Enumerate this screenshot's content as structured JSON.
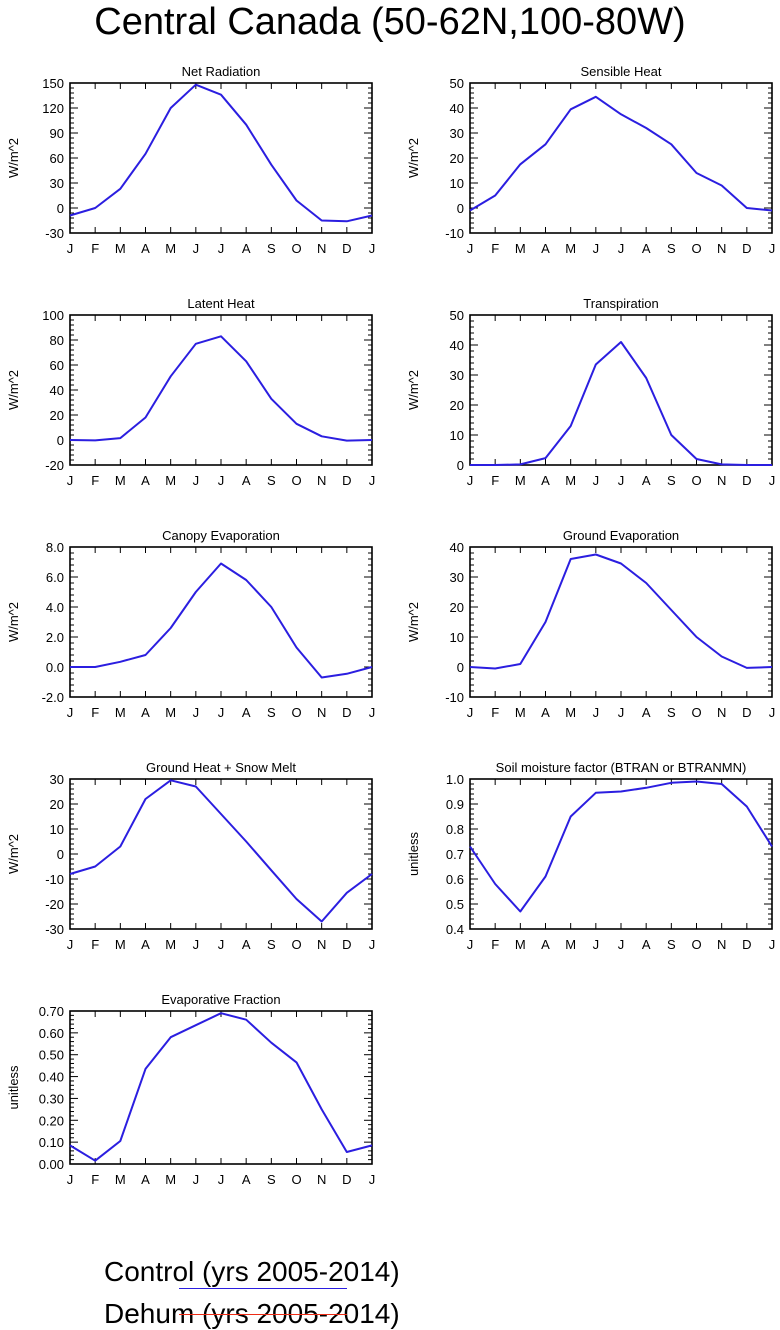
{
  "title": "Central Canada (50-62N,100-80W)",
  "month_labels": [
    "J",
    "F",
    "M",
    "A",
    "M",
    "J",
    "J",
    "A",
    "S",
    "O",
    "N",
    "D",
    "J"
  ],
  "colors": {
    "control": "#2b1ee0",
    "dehum": "#ee2d16",
    "axis": "#000000"
  },
  "chart_data": [
    {
      "type": "line",
      "title": "Net Radiation",
      "ylabel": "W/m^2",
      "ylim": [
        -30,
        150
      ],
      "yticks": [
        -30,
        0,
        30,
        60,
        90,
        120,
        150
      ],
      "ytick_labels": [
        "-30",
        "0",
        "30",
        "60",
        "90",
        "120",
        "150"
      ],
      "series": [
        {
          "name": "Control",
          "values": [
            -9,
            0,
            23,
            65,
            120,
            148,
            136,
            100,
            52,
            9,
            -15,
            -16,
            -9
          ]
        }
      ]
    },
    {
      "type": "line",
      "title": "Sensible Heat",
      "ylabel": "W/m^2",
      "ylim": [
        -10,
        50
      ],
      "yticks": [
        -10,
        0,
        10,
        20,
        30,
        40,
        50
      ],
      "ytick_labels": [
        "-10",
        "0",
        "10",
        "20",
        "30",
        "40",
        "50"
      ],
      "series": [
        {
          "name": "Control",
          "values": [
            -1,
            5,
            17.5,
            25.5,
            39.5,
            44.5,
            37.5,
            32,
            25.5,
            14,
            9,
            0,
            -1
          ]
        }
      ]
    },
    {
      "type": "line",
      "title": "Latent Heat",
      "ylabel": "W/m^2",
      "ylim": [
        -20,
        100
      ],
      "yticks": [
        -20,
        0,
        20,
        40,
        60,
        80,
        100
      ],
      "ytick_labels": [
        "-20",
        "0",
        "20",
        "40",
        "60",
        "80",
        "100"
      ],
      "series": [
        {
          "name": "Control",
          "values": [
            0,
            -0.3,
            1.5,
            18,
            51,
            77,
            83,
            63,
            33,
            13,
            3,
            -0.5,
            0
          ]
        }
      ]
    },
    {
      "type": "line",
      "title": "Transpiration",
      "ylabel": "W/m^2",
      "ylim": [
        0,
        50
      ],
      "yticks": [
        0,
        10,
        20,
        30,
        40,
        50
      ],
      "ytick_labels": [
        "0",
        "10",
        "20",
        "30",
        "40",
        "50"
      ],
      "series": [
        {
          "name": "Control",
          "values": [
            0,
            0,
            0.2,
            2.3,
            13,
            33.5,
            41,
            29,
            10,
            2,
            0.2,
            0,
            0
          ]
        }
      ]
    },
    {
      "type": "line",
      "title": "Canopy Evaporation",
      "ylabel": "W/m^2",
      "ylim": [
        -2,
        8
      ],
      "yticks": [
        -2,
        0,
        2,
        4,
        6,
        8
      ],
      "ytick_labels": [
        "-2.0",
        "0.0",
        "2.0",
        "4.0",
        "6.0",
        "8.0"
      ],
      "series": [
        {
          "name": "Control",
          "values": [
            0,
            0,
            0.35,
            0.8,
            2.6,
            5.0,
            6.9,
            5.8,
            4.0,
            1.3,
            -0.7,
            -0.45,
            0
          ]
        }
      ]
    },
    {
      "type": "line",
      "title": "Ground Evaporation",
      "ylabel": "W/m^2",
      "ylim": [
        -10,
        40
      ],
      "yticks": [
        -10,
        0,
        10,
        20,
        30,
        40
      ],
      "ytick_labels": [
        "-10",
        "0",
        "10",
        "20",
        "30",
        "40"
      ],
      "series": [
        {
          "name": "Control",
          "values": [
            0,
            -0.5,
            1,
            15,
            36,
            37.5,
            34.5,
            28,
            19,
            10,
            3.5,
            -0.3,
            0
          ]
        }
      ]
    },
    {
      "type": "line",
      "title": "Ground Heat + Snow Melt",
      "ylabel": "W/m^2",
      "ylim": [
        -30,
        30
      ],
      "yticks": [
        -30,
        -20,
        -10,
        0,
        10,
        20,
        30
      ],
      "ytick_labels": [
        "-30",
        "-20",
        "-10",
        "0",
        "10",
        "20",
        "30"
      ],
      "series": [
        {
          "name": "Control",
          "values": [
            -8,
            -5,
            3,
            22,
            29.5,
            27,
            16,
            5,
            -6.5,
            -18,
            -27,
            -15.5,
            -8
          ]
        }
      ]
    },
    {
      "type": "line",
      "title": "Soil moisture factor (BTRAN or BTRANMN)",
      "ylabel": "unitless",
      "ylim": [
        0.4,
        1.0
      ],
      "yticks": [
        0.4,
        0.5,
        0.6,
        0.7,
        0.8,
        0.9,
        1.0
      ],
      "ytick_labels": [
        "0.4",
        "0.5",
        "0.6",
        "0.7",
        "0.8",
        "0.9",
        "1.0"
      ],
      "series": [
        {
          "name": "Control",
          "values": [
            0.73,
            0.58,
            0.47,
            0.61,
            0.85,
            0.945,
            0.95,
            0.965,
            0.985,
            0.99,
            0.98,
            0.89,
            0.73
          ]
        }
      ]
    },
    {
      "type": "line",
      "title": "Evaporative Fraction",
      "ylabel": "unitless",
      "ylim": [
        0,
        0.7
      ],
      "yticks": [
        0,
        0.1,
        0.2,
        0.3,
        0.4,
        0.5,
        0.6,
        0.7
      ],
      "ytick_labels": [
        "0.00",
        "0.10",
        "0.20",
        "0.30",
        "0.40",
        "0.50",
        "0.60",
        "0.70"
      ],
      "series": [
        {
          "name": "Control",
          "values": [
            0.085,
            0.015,
            0.105,
            0.435,
            0.58,
            0.635,
            0.69,
            0.66,
            0.555,
            0.465,
            0.25,
            0.055,
            0.085
          ]
        }
      ]
    }
  ],
  "legend": [
    {
      "label": "Control (yrs 2005-2014)",
      "color": "#2b1ee0"
    },
    {
      "label": "Dehum (yrs 2005-2014)",
      "color": "#ee2d16"
    }
  ]
}
